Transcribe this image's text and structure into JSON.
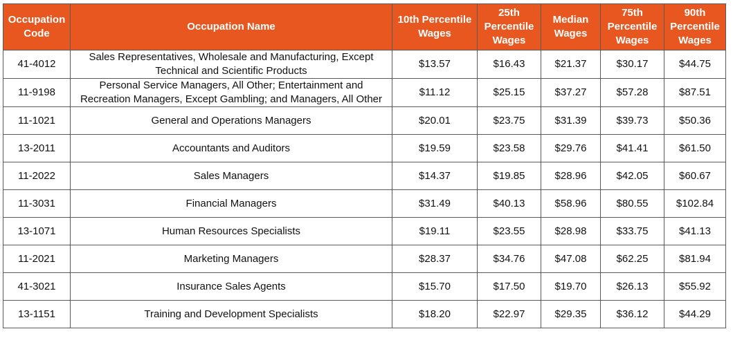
{
  "table": {
    "headers": [
      "Occupation Code",
      "Occupation Name",
      "10th Percentile Wages",
      "25th Percentile Wages",
      "Median Wages",
      "75th Percentile Wages",
      "90th Percentile Wages"
    ],
    "rows": [
      [
        "41-4012",
        "Sales Representatives, Wholesale and Manufacturing, Except Technical and Scientific Products",
        "$13.57",
        "$16.43",
        "$21.37",
        "$30.17",
        "$44.75"
      ],
      [
        "11-9198",
        "Personal Service Managers, All Other; Entertainment and Recreation Managers, Except Gambling; and Managers, All Other",
        "$11.12",
        "$25.15",
        "$37.27",
        "$57.28",
        "$87.51"
      ],
      [
        "11-1021",
        "General and Operations Managers",
        "$20.01",
        "$23.75",
        "$31.39",
        "$39.73",
        "$50.36"
      ],
      [
        "13-2011",
        "Accountants and Auditors",
        "$19.59",
        "$23.58",
        "$29.76",
        "$41.41",
        "$61.50"
      ],
      [
        "11-2022",
        "Sales Managers",
        "$14.37",
        "$19.85",
        "$28.96",
        "$42.05",
        "$60.67"
      ],
      [
        "11-3031",
        "Financial Managers",
        "$31.49",
        "$40.13",
        "$58.96",
        "$80.55",
        "$102.84"
      ],
      [
        "13-1071",
        "Human Resources Specialists",
        "$19.11",
        "$23.55",
        "$28.98",
        "$33.75",
        "$41.13"
      ],
      [
        "11-2021",
        "Marketing Managers",
        "$28.37",
        "$34.76",
        "$47.08",
        "$62.25",
        "$81.94"
      ],
      [
        "41-3021",
        "Insurance Sales Agents",
        "$15.70",
        "$17.50",
        "$19.70",
        "$26.13",
        "$55.92"
      ],
      [
        "13-1151",
        "Training and Development Specialists",
        "$18.20",
        "$22.97",
        "$29.35",
        "$36.12",
        "$44.29"
      ]
    ]
  }
}
